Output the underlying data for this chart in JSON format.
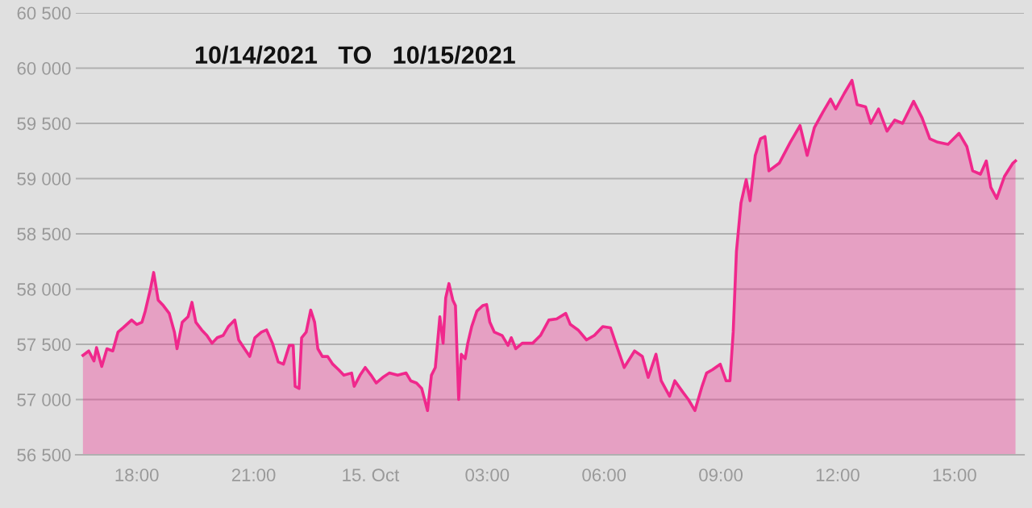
{
  "chart_data": {
    "type": "area",
    "title": "10/14/2021   TO   10/15/2021",
    "x": [
      "2021-10-14T16:37",
      "2021-10-14T16:46",
      "2021-10-14T16:54",
      "2021-10-14T16:58",
      "2021-10-14T17:06",
      "2021-10-14T17:14",
      "2021-10-14T17:23",
      "2021-10-14T17:31",
      "2021-10-14T17:39",
      "2021-10-14T17:52",
      "2021-10-14T18:00",
      "2021-10-14T18:08",
      "2021-10-14T18:13",
      "2021-10-14T18:21",
      "2021-10-14T18:26",
      "2021-10-14T18:33",
      "2021-10-14T18:41",
      "2021-10-14T18:50",
      "2021-10-14T18:58",
      "2021-10-14T19:02",
      "2021-10-14T19:10",
      "2021-10-14T19:19",
      "2021-10-14T19:25",
      "2021-10-14T19:31",
      "2021-10-14T19:40",
      "2021-10-14T19:48",
      "2021-10-14T19:56",
      "2021-10-14T20:04",
      "2021-10-14T20:13",
      "2021-10-14T20:21",
      "2021-10-14T20:31",
      "2021-10-14T20:37",
      "2021-10-14T20:46",
      "2021-10-14T20:54",
      "2021-10-14T21:02",
      "2021-10-14T21:12",
      "2021-10-14T21:20",
      "2021-10-14T21:29",
      "2021-10-14T21:38",
      "2021-10-14T21:46",
      "2021-10-14T21:55",
      "2021-10-14T22:01",
      "2021-10-14T22:04",
      "2021-10-14T22:10",
      "2021-10-14T22:14",
      "2021-10-14T22:21",
      "2021-10-14T22:28",
      "2021-10-14T22:34",
      "2021-10-14T22:39",
      "2021-10-14T22:46",
      "2021-10-14T22:54",
      "2021-10-14T23:02",
      "2021-10-14T23:11",
      "2021-10-14T23:19",
      "2021-10-14T23:31",
      "2021-10-14T23:35",
      "2021-10-14T23:44",
      "2021-10-14T23:52",
      "2021-10-15T00:01",
      "2021-10-15T00:09",
      "2021-10-15T00:19",
      "2021-10-15T00:29",
      "2021-10-15T00:42",
      "2021-10-15T00:55",
      "2021-10-15T01:02",
      "2021-10-15T01:11",
      "2021-10-15T01:19",
      "2021-10-15T01:28",
      "2021-10-15T01:34",
      "2021-10-15T01:40",
      "2021-10-15T01:47",
      "2021-10-15T01:52",
      "2021-10-15T01:56",
      "2021-10-15T02:01",
      "2021-10-15T02:07",
      "2021-10-15T02:11",
      "2021-10-15T02:16",
      "2021-10-15T02:20",
      "2021-10-15T02:26",
      "2021-10-15T02:30",
      "2021-10-15T02:36",
      "2021-10-15T02:44",
      "2021-10-15T02:53",
      "2021-10-15T02:59",
      "2021-10-15T03:04",
      "2021-10-15T03:11",
      "2021-10-15T03:23",
      "2021-10-15T03:32",
      "2021-10-15T03:37",
      "2021-10-15T03:44",
      "2021-10-15T03:54",
      "2021-10-15T04:10",
      "2021-10-15T04:22",
      "2021-10-15T04:35",
      "2021-10-15T04:47",
      "2021-10-15T05:01",
      "2021-10-15T05:08",
      "2021-10-15T05:20",
      "2021-10-15T05:33",
      "2021-10-15T05:45",
      "2021-10-15T05:58",
      "2021-10-15T06:10",
      "2021-10-15T06:18",
      "2021-10-15T06:31",
      "2021-10-15T06:47",
      "2021-10-15T06:59",
      "2021-10-15T07:08",
      "2021-10-15T07:20",
      "2021-10-15T07:28",
      "2021-10-15T07:41",
      "2021-10-15T07:49",
      "2021-10-15T08:01",
      "2021-10-15T08:10",
      "2021-10-15T08:20",
      "2021-10-15T08:31",
      "2021-10-15T08:38",
      "2021-10-15T08:47",
      "2021-10-15T08:59",
      "2021-10-15T09:08",
      "2021-10-15T09:14",
      "2021-10-15T09:19",
      "2021-10-15T09:24",
      "2021-10-15T09:31",
      "2021-10-15T09:39",
      "2021-10-15T09:45",
      "2021-10-15T09:53",
      "2021-10-15T10:01",
      "2021-10-15T10:08",
      "2021-10-15T10:14",
      "2021-10-15T10:30",
      "2021-10-15T10:47",
      "2021-10-15T11:02",
      "2021-10-15T11:13",
      "2021-10-15T11:24",
      "2021-10-15T11:37",
      "2021-10-15T11:49",
      "2021-10-15T11:57",
      "2021-10-15T12:10",
      "2021-10-15T12:22",
      "2021-10-15T12:30",
      "2021-10-15T12:43",
      "2021-10-15T12:51",
      "2021-10-15T13:03",
      "2021-10-15T13:16",
      "2021-10-15T13:28",
      "2021-10-15T13:40",
      "2021-10-15T13:57",
      "2021-10-15T14:10",
      "2021-10-15T14:22",
      "2021-10-15T14:34",
      "2021-10-15T14:50",
      "2021-10-15T15:07",
      "2021-10-15T15:19",
      "2021-10-15T15:28",
      "2021-10-15T15:40",
      "2021-10-15T15:49",
      "2021-10-15T15:56",
      "2021-10-15T16:05",
      "2021-10-15T16:17",
      "2021-10-15T16:30",
      "2021-10-15T16:34"
    ],
    "series": [
      {
        "color": "#f0288c",
        "values": [
          57400,
          57440,
          57350,
          57470,
          57300,
          57460,
          57440,
          57610,
          57650,
          57720,
          57680,
          57700,
          57800,
          58000,
          58150,
          57900,
          57850,
          57780,
          57610,
          57460,
          57700,
          57750,
          57880,
          57700,
          57630,
          57580,
          57510,
          57560,
          57580,
          57660,
          57720,
          57540,
          57460,
          57390,
          57560,
          57610,
          57630,
          57510,
          57340,
          57320,
          57490,
          57490,
          57120,
          57100,
          57560,
          57610,
          57810,
          57700,
          57460,
          57390,
          57390,
          57320,
          57270,
          57220,
          57240,
          57120,
          57220,
          57290,
          57220,
          57150,
          57200,
          57240,
          57220,
          57240,
          57170,
          57150,
          57100,
          56900,
          57220,
          57290,
          57750,
          57510,
          57920,
          58050,
          57900,
          57850,
          57000,
          57410,
          57370,
          57510,
          57660,
          57800,
          57850,
          57860,
          57700,
          57610,
          57580,
          57490,
          57560,
          57460,
          57510,
          57510,
          57580,
          57720,
          57730,
          57780,
          57680,
          57630,
          57540,
          57580,
          57660,
          57650,
          57510,
          57290,
          57440,
          57390,
          57200,
          57410,
          57170,
          57030,
          57170,
          57070,
          57000,
          56900,
          57120,
          57240,
          57270,
          57320,
          57170,
          57170,
          57610,
          58340,
          58780,
          58990,
          58800,
          59210,
          59360,
          59380,
          59070,
          59140,
          59330,
          59480,
          59210,
          59460,
          59600,
          59720,
          59630,
          59770,
          59890,
          59670,
          59650,
          59500,
          59630,
          59430,
          59530,
          59500,
          59700,
          59550,
          59360,
          59330,
          59310,
          59410,
          59290,
          59070,
          59040,
          59160,
          58920,
          58820,
          59020,
          59140,
          59160
        ]
      }
    ],
    "xlim": [
      "2021-10-14T16:26",
      "2021-10-15T16:47"
    ],
    "xticks": [
      {
        "value": "2021-10-14T18:00",
        "label": "18:00"
      },
      {
        "value": "2021-10-14T21:00",
        "label": "21:00"
      },
      {
        "value": "2021-10-15T00:00",
        "label": "15. Oct"
      },
      {
        "value": "2021-10-15T03:00",
        "label": "03:00"
      },
      {
        "value": "2021-10-15T06:00",
        "label": "06:00"
      },
      {
        "value": "2021-10-15T09:00",
        "label": "09:00"
      },
      {
        "value": "2021-10-15T12:00",
        "label": "12:00"
      },
      {
        "value": "2021-10-15T15:00",
        "label": "15:00"
      }
    ],
    "ylim": [
      56500,
      60500
    ],
    "yticks": [
      {
        "value": 56500,
        "label": "56 500"
      },
      {
        "value": 57000,
        "label": "57 000"
      },
      {
        "value": 57500,
        "label": "57 500"
      },
      {
        "value": 58000,
        "label": "58 000"
      },
      {
        "value": 58500,
        "label": "58 500"
      },
      {
        "value": 59000,
        "label": "59 000"
      },
      {
        "value": 59500,
        "label": "59 500"
      },
      {
        "value": 60000,
        "label": "60 000"
      },
      {
        "value": 60500,
        "label": "60 500"
      }
    ],
    "grid": "y"
  }
}
